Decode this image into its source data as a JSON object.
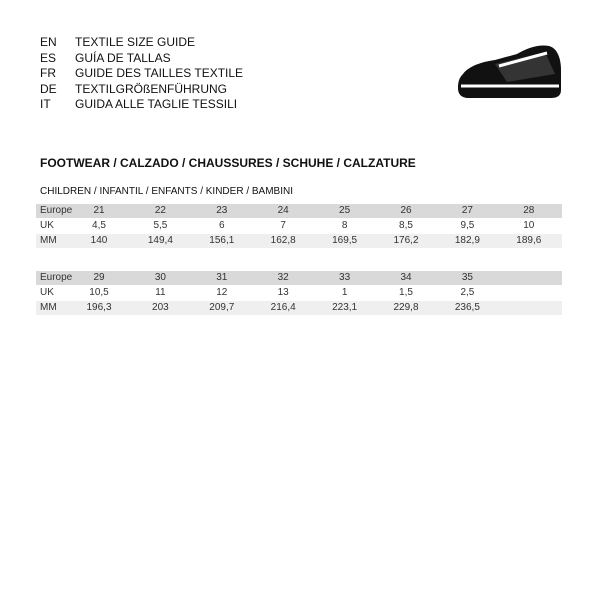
{
  "languages": [
    {
      "code": "EN",
      "label": "TEXTILE SIZE GUIDE"
    },
    {
      "code": "ES",
      "label": "GUÍA DE TALLAS"
    },
    {
      "code": "FR",
      "label": "GUIDE DES TAILLES TEXTILE"
    },
    {
      "code": "DE",
      "label": "TEXTILGRÖßENFÜHRUNG"
    },
    {
      "code": "IT",
      "label": "GUIDA ALLE TAGLIE TESSILI"
    }
  ],
  "section": {
    "title": "FOOTWEAR / CALZADO / CHAUSSURES / SCHUHE / CALZATURE",
    "subtitle": "CHILDREN / INFANTIL / ENFANTS / KINDER / BAMBINI"
  },
  "tables": [
    {
      "rows": [
        {
          "label": "Europe",
          "cells": [
            "21",
            "22",
            "23",
            "24",
            "25",
            "26",
            "27",
            "28"
          ]
        },
        {
          "label": "UK",
          "cells": [
            "4,5",
            "5,5",
            "6",
            "7",
            "8",
            "8,5",
            "9,5",
            "10"
          ]
        },
        {
          "label": "MM",
          "cells": [
            "140",
            "149,4",
            "156,1",
            "162,8",
            "169,5",
            "176,2",
            "182,9",
            "189,6"
          ]
        }
      ]
    },
    {
      "rows": [
        {
          "label": "Europe",
          "cells": [
            "29",
            "30",
            "31",
            "32",
            "33",
            "34",
            "35"
          ]
        },
        {
          "label": "UK",
          "cells": [
            "10,5",
            "11",
            "12",
            "13",
            "1",
            "1,5",
            "2,5"
          ]
        },
        {
          "label": "MM",
          "cells": [
            "196,3",
            "203",
            "209,7",
            "216,4",
            "223,1",
            "229,8",
            "236,5"
          ]
        }
      ]
    }
  ]
}
